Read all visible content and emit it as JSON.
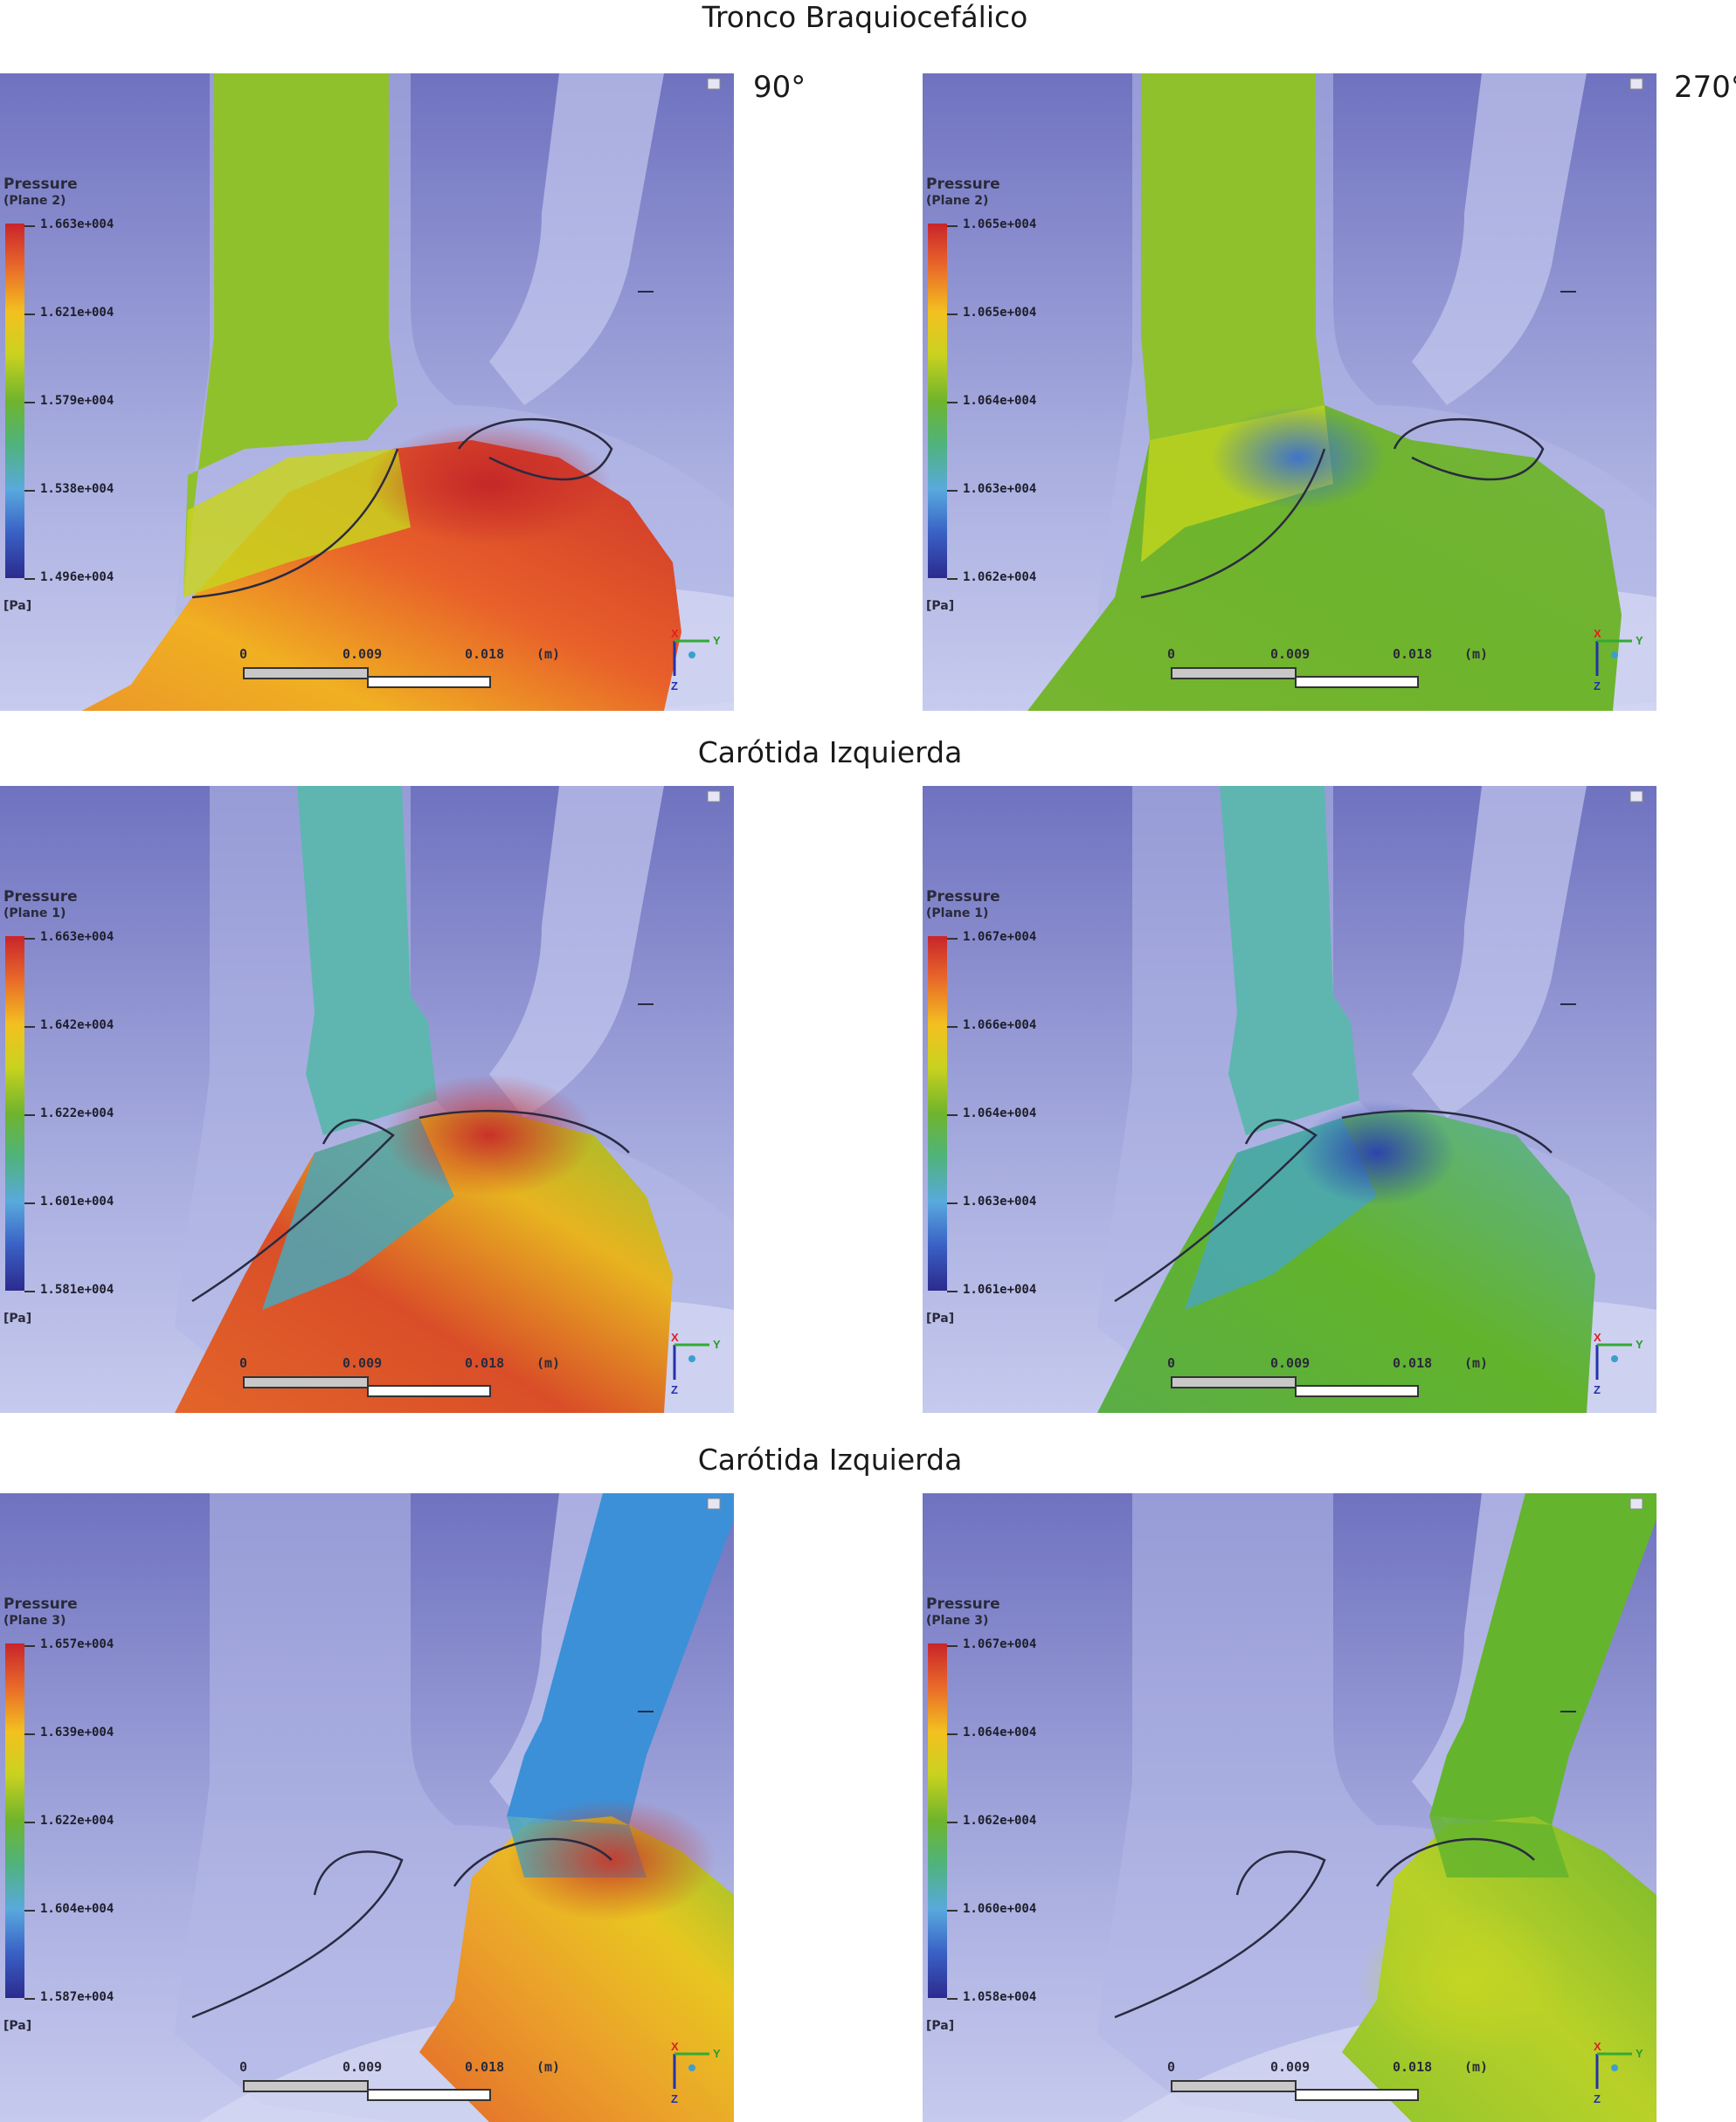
{
  "sections": [
    {
      "title": "Tronco Braquiocefálico"
    },
    {
      "title": "Carótida Izquierda"
    },
    {
      "title": "Carótida Izquierda"
    }
  ],
  "angles": {
    "left": "90°",
    "right": "270°"
  },
  "legend_title": "Pressure",
  "unit": "[Pa]",
  "scale": {
    "zero": "0",
    "mid": "0.009",
    "max": "0.018",
    "unit": "(m)"
  },
  "axes": {
    "x": "X",
    "y": "Y",
    "z": "Z"
  },
  "panels": [
    {
      "plane": "(Plane 2)",
      "ticks": [
        "1.663e+004",
        "1.621e+004",
        "1.579e+004",
        "1.538e+004",
        "1.496e+004"
      ]
    },
    {
      "plane": "(Plane 2)",
      "ticks": [
        "1.065e+004",
        "1.065e+004",
        "1.064e+004",
        "1.063e+004",
        "1.062e+004"
      ]
    },
    {
      "plane": "(Plane 1)",
      "ticks": [
        "1.663e+004",
        "1.642e+004",
        "1.622e+004",
        "1.601e+004",
        "1.581e+004"
      ]
    },
    {
      "plane": "(Plane 1)",
      "ticks": [
        "1.067e+004",
        "1.066e+004",
        "1.064e+004",
        "1.063e+004",
        "1.061e+004"
      ]
    },
    {
      "plane": "(Plane 3)",
      "ticks": [
        "1.657e+004",
        "1.639e+004",
        "1.622e+004",
        "1.604e+004",
        "1.587e+004"
      ]
    },
    {
      "plane": "(Plane 3)",
      "ticks": [
        "1.067e+004",
        "1.064e+004",
        "1.062e+004",
        "1.060e+004",
        "1.058e+004"
      ]
    }
  ]
}
